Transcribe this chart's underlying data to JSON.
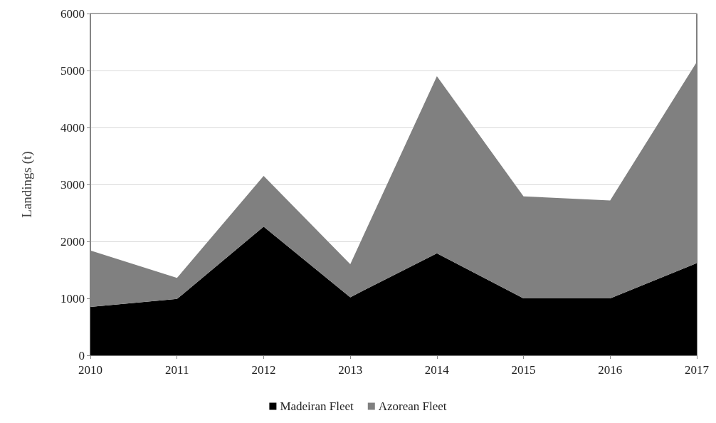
{
  "chart_data": {
    "type": "area",
    "stacked": true,
    "ylabel": "Landings (t)",
    "categories": [
      "2010",
      "2011",
      "2012",
      "2013",
      "2014",
      "2015",
      "2016",
      "2017"
    ],
    "series": [
      {
        "name": "Madeiran Fleet",
        "color": "#000000",
        "values": [
          850,
          990,
          2260,
          1020,
          1790,
          1000,
          1000,
          1620
        ]
      },
      {
        "name": "Azorean Fleet",
        "color": "#808080",
        "values": [
          990,
          370,
          890,
          580,
          3110,
          1790,
          1720,
          3530
        ]
      }
    ],
    "ylim": [
      0,
      6000
    ],
    "yticks": [
      0,
      1000,
      2000,
      3000,
      4000,
      5000,
      6000
    ],
    "grid": "y",
    "legend": "bottom"
  }
}
